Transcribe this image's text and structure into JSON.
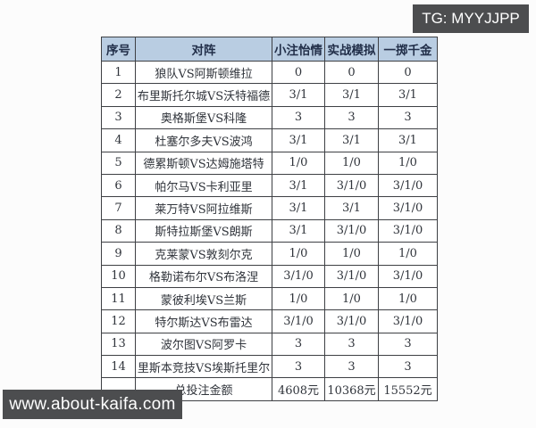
{
  "badges": {
    "telegram": "TG: MYYJJPP",
    "website": "www.about-kaifa.com",
    "background_color": "#4c4d4f",
    "text_color": "#ffffff"
  },
  "table": {
    "header_background": "#b9cde2",
    "border_color": "#3e4044",
    "headers": [
      "序号",
      "对阵",
      "小注怡情",
      "实战模拟",
      "一掷千金"
    ],
    "rows": [
      {
        "no": "1",
        "match": "狼队VS阿斯顿维拉",
        "casual": "0",
        "sim": "0",
        "big": "0"
      },
      {
        "no": "2",
        "match": "布里斯托尔城VS沃特福德",
        "casual": "3/1",
        "sim": "3/1",
        "big": "3/1"
      },
      {
        "no": "3",
        "match": "奥格斯堡VS科隆",
        "casual": "3",
        "sim": "3",
        "big": "3"
      },
      {
        "no": "4",
        "match": "杜塞尔多夫VS波鸿",
        "casual": "3/1",
        "sim": "3/1",
        "big": "3/1"
      },
      {
        "no": "5",
        "match": "德累斯顿VS达姆施塔特",
        "casual": "1/0",
        "sim": "1/0",
        "big": "1/0"
      },
      {
        "no": "6",
        "match": "帕尔马VS卡利亚里",
        "casual": "3/1",
        "sim": "3/1/0",
        "big": "3/1/0"
      },
      {
        "no": "7",
        "match": "莱万特VS阿拉维斯",
        "casual": "3/1",
        "sim": "3/1",
        "big": "3/1/0"
      },
      {
        "no": "8",
        "match": "斯特拉斯堡VS朗斯",
        "casual": "3/1",
        "sim": "3/1/0",
        "big": "3/1/0"
      },
      {
        "no": "9",
        "match": "克莱蒙VS敦刻尔克",
        "casual": "1/0",
        "sim": "1/0",
        "big": "1/0"
      },
      {
        "no": "10",
        "match": "格勒诺布尔VS布洛涅",
        "casual": "3/1/0",
        "sim": "3/1/0",
        "big": "3/1/0"
      },
      {
        "no": "11",
        "match": "蒙彼利埃VS兰斯",
        "casual": "1/0",
        "sim": "1/0",
        "big": "1/0"
      },
      {
        "no": "12",
        "match": "特尔斯达VS布雷达",
        "casual": "3/1/0",
        "sim": "3/1/0",
        "big": "3/1/0"
      },
      {
        "no": "13",
        "match": "波尔图VS阿罗卡",
        "casual": "3",
        "sim": "3",
        "big": "3"
      },
      {
        "no": "14",
        "match": "里斯本竞技VS埃斯托里尔",
        "casual": "3",
        "sim": "3",
        "big": "3"
      }
    ],
    "footer": {
      "no": "",
      "label": "总投注金额",
      "casual": "4608元",
      "sim": "10368元",
      "big": "15552元"
    }
  }
}
